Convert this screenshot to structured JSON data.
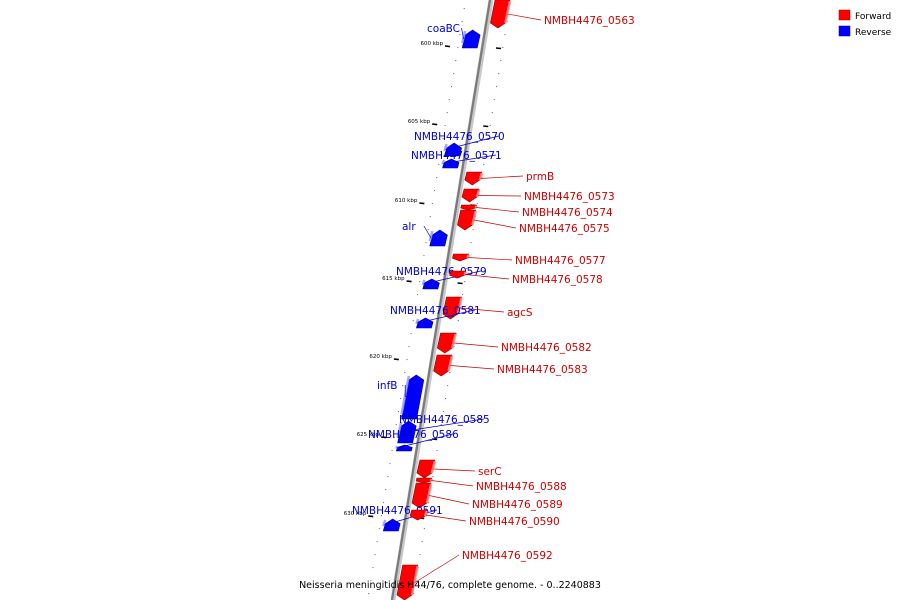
{
  "caption": "Neisseria meningitidis H44/76, complete genome. - 0..2240883",
  "legend": {
    "forward": {
      "label": "Forward",
      "color": "#ff0000"
    },
    "reverse": {
      "label": "Reverse",
      "color": "#0000ff"
    }
  },
  "colors": {
    "forward_label": "#cc0000",
    "reverse_label": "#0000cc",
    "backbone": "#8c8c8c"
  },
  "ticks": [
    "600 kbp",
    "605 kbp",
    "610 kbp",
    "615 kbp",
    "620 kbp",
    "625 kbp",
    "630 kbp"
  ],
  "genes": [
    {
      "name": "NMBH4476_0563",
      "strand": "forward",
      "icon": "arrow-right-icon"
    },
    {
      "name": "coaBC",
      "strand": "reverse",
      "icon": "arrow-left-icon"
    },
    {
      "name": "NMBH4476_0570",
      "strand": "reverse",
      "icon": "arrow-left-icon"
    },
    {
      "name": "NMBH4476_0571",
      "strand": "reverse",
      "icon": "arrow-left-icon"
    },
    {
      "name": "prmB",
      "strand": "forward",
      "icon": "arrow-right-icon"
    },
    {
      "name": "NMBH4476_0573",
      "strand": "forward",
      "icon": "arrow-right-icon"
    },
    {
      "name": "NMBH4476_0574",
      "strand": "forward",
      "icon": "arrow-right-icon"
    },
    {
      "name": "alr",
      "strand": "reverse",
      "icon": "arrow-left-icon"
    },
    {
      "name": "NMBH4476_0575",
      "strand": "forward",
      "icon": "arrow-right-icon"
    },
    {
      "name": "NMBH4476_0577",
      "strand": "forward",
      "icon": "arrow-right-icon"
    },
    {
      "name": "NMBH4476_0579",
      "strand": "reverse",
      "icon": "arrow-left-icon"
    },
    {
      "name": "NMBH4476_0578",
      "strand": "forward",
      "icon": "arrow-right-icon"
    },
    {
      "name": "agcS",
      "strand": "forward",
      "icon": "arrow-right-icon"
    },
    {
      "name": "NMBH4476_0581",
      "strand": "reverse",
      "icon": "arrow-left-icon"
    },
    {
      "name": "NMBH4476_0582",
      "strand": "forward",
      "icon": "arrow-right-icon"
    },
    {
      "name": "NMBH4476_0583",
      "strand": "forward",
      "icon": "arrow-right-icon"
    },
    {
      "name": "infB",
      "strand": "reverse",
      "icon": "arrow-left-icon"
    },
    {
      "name": "NMBH4476_0585",
      "strand": "reverse",
      "icon": "arrow-left-icon"
    },
    {
      "name": "NMBH4476_0586",
      "strand": "reverse",
      "icon": "arrow-left-icon"
    },
    {
      "name": "serC",
      "strand": "forward",
      "icon": "arrow-right-icon"
    },
    {
      "name": "NMBH4476_0588",
      "strand": "forward",
      "icon": "arrow-right-icon"
    },
    {
      "name": "NMBH4476_0589",
      "strand": "forward",
      "icon": "arrow-right-icon"
    },
    {
      "name": "NMBH4476_0591",
      "strand": "reverse",
      "icon": "arrow-left-icon"
    },
    {
      "name": "NMBH4476_0590",
      "strand": "forward",
      "icon": "arrow-right-icon"
    },
    {
      "name": "NMBH4476_0592",
      "strand": "forward",
      "icon": "arrow-right-icon"
    }
  ]
}
